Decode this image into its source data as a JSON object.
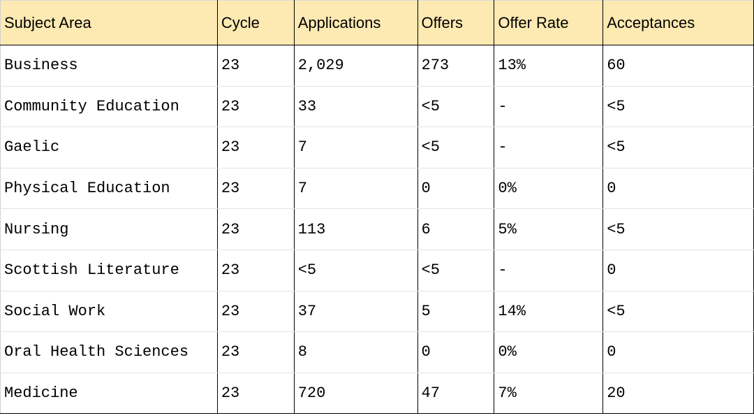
{
  "table": {
    "headers": [
      "Subject Area",
      "Cycle",
      "Applications",
      "Offers",
      "Offer Rate",
      "Acceptances"
    ],
    "rows": [
      [
        "Business",
        "23",
        "2,029",
        "273",
        "13%",
        "60"
      ],
      [
        "Community Education",
        "23",
        "33",
        "<5",
        "-",
        "<5"
      ],
      [
        "Gaelic",
        "23",
        "7",
        "<5",
        "-",
        "<5"
      ],
      [
        "Physical Education",
        "23",
        "7",
        "0",
        "0%",
        "0"
      ],
      [
        "Nursing",
        "23",
        "113",
        "6",
        "5%",
        "<5"
      ],
      [
        "Scottish Literature",
        "23",
        "<5",
        "<5",
        "-",
        "0"
      ],
      [
        "Social Work",
        "23",
        "37",
        "5",
        "14%",
        "<5"
      ],
      [
        "Oral Health Sciences",
        "23",
        "8",
        "0",
        "0%",
        "0"
      ],
      [
        "Medicine",
        "23",
        "720",
        "47",
        "7%",
        "20"
      ]
    ]
  },
  "colors": {
    "header_background": "#fde9b2",
    "grid_line": "#000000"
  }
}
